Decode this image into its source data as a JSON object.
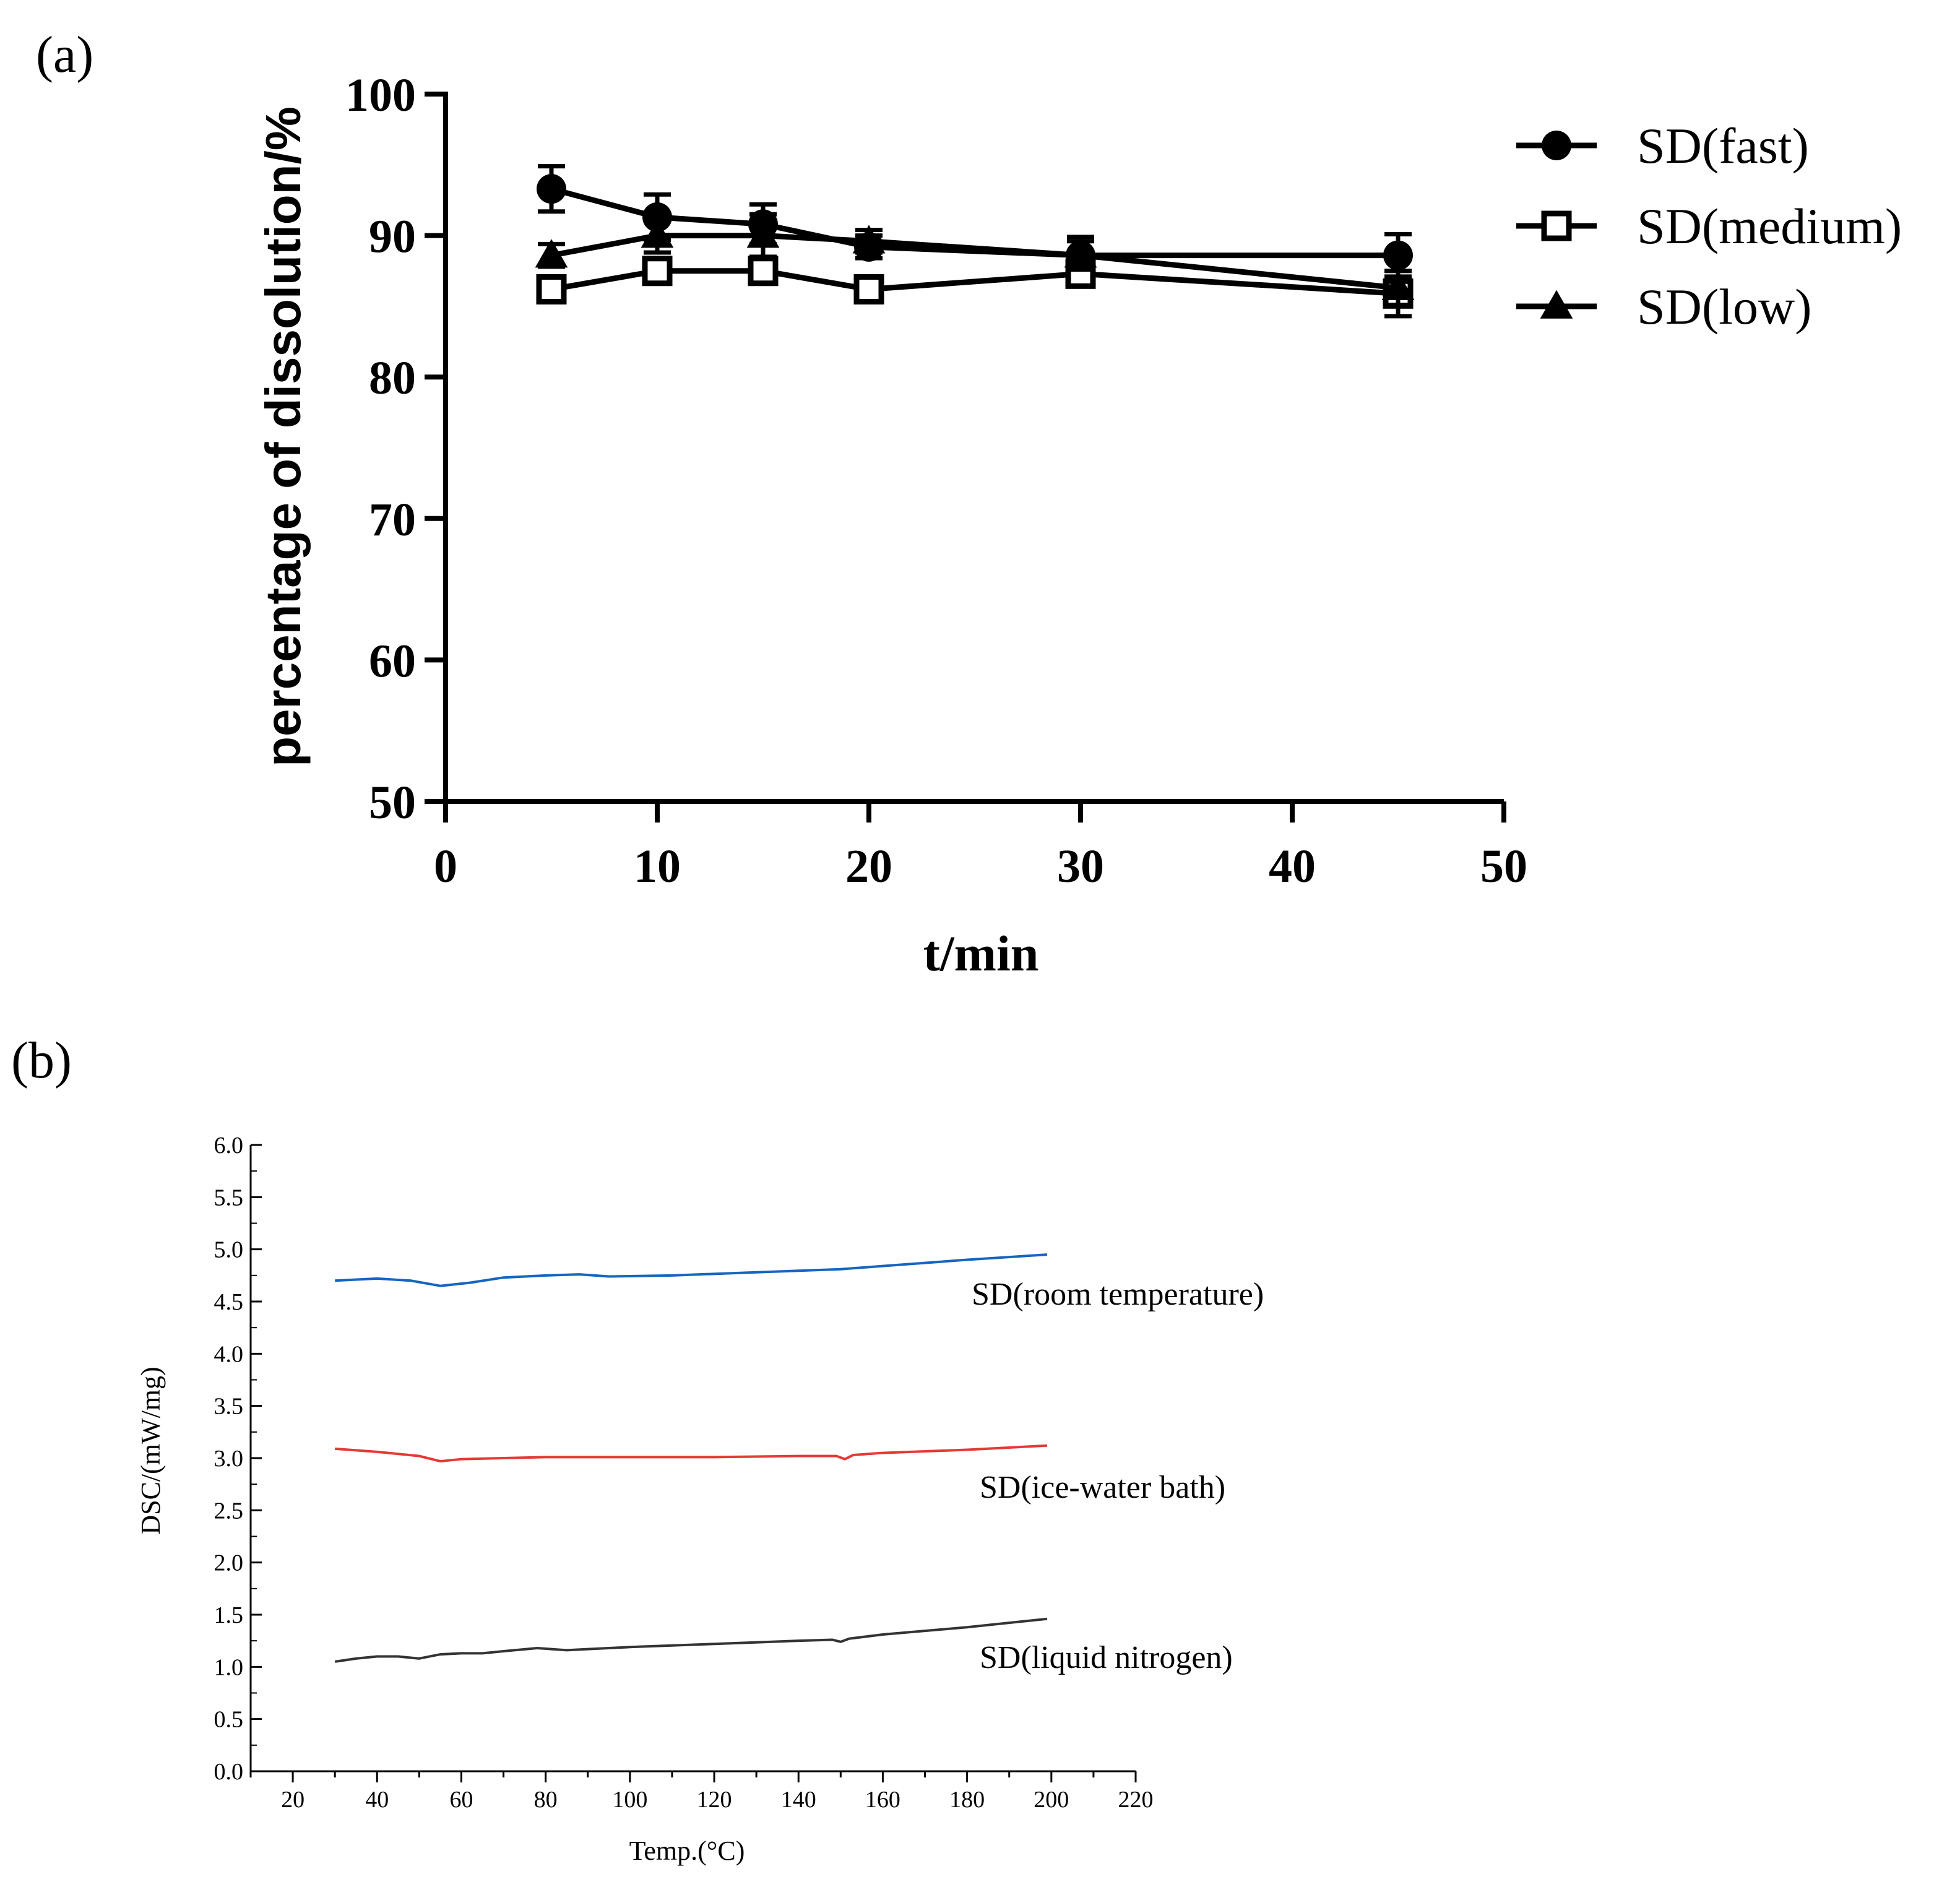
{
  "panels": {
    "a_label": "(a)",
    "b_label": "(b)"
  },
  "chart_data": [
    {
      "type": "line",
      "panel": "(a)",
      "title": "",
      "xlabel": "t/min",
      "ylabel": "percentage of dissolution/%",
      "xlim": [
        0,
        50
      ],
      "ylim": [
        50,
        100
      ],
      "xticks": [
        0,
        10,
        20,
        30,
        40,
        50
      ],
      "yticks": [
        50,
        60,
        70,
        80,
        90,
        100
      ],
      "legend_position": "top-right",
      "x": [
        5,
        10,
        15,
        20,
        30,
        45
      ],
      "series": [
        {
          "name": "SD(fast)",
          "marker": "circle",
          "values": [
            93.3,
            91.3,
            90.8,
            89.2,
            88.6,
            88.6
          ],
          "errors": [
            1.6,
            1.6,
            1.4,
            0.8,
            1.3,
            1.5
          ]
        },
        {
          "name": "SD(medium)",
          "marker": "square",
          "values": [
            86.2,
            87.5,
            87.5,
            86.2,
            87.3,
            85.9
          ],
          "errors": [
            0.9,
            0.8,
            0.7,
            0.8,
            0.7,
            1.6
          ]
        },
        {
          "name": "SD(low)",
          "marker": "triangle",
          "values": [
            88.6,
            90.0,
            90.0,
            89.6,
            88.6,
            86.3
          ],
          "errors": [
            0.8,
            1.2,
            1.5,
            0.8,
            1.0,
            1.2
          ]
        }
      ]
    },
    {
      "type": "line",
      "panel": "(b)",
      "title": "",
      "xlabel": "Temp.(°C)",
      "ylabel": "DSC/(mW/mg)",
      "xlim": [
        10,
        220
      ],
      "ylim": [
        0,
        6
      ],
      "xticks": [
        20,
        40,
        60,
        80,
        100,
        120,
        140,
        160,
        180,
        200,
        220
      ],
      "yticks": [
        "0.0",
        "0.5",
        "1.0",
        "1.5",
        "2.0",
        "2.5",
        "3.0",
        "3.5",
        "4.0",
        "4.5",
        "5.0",
        "5.5",
        "6.0"
      ],
      "series": [
        {
          "name": "SD(room temperature)",
          "color": "#1565c0",
          "x": [
            30,
            40,
            48,
            55,
            62,
            70,
            80,
            88,
            95,
            110,
            130,
            150,
            160,
            180,
            199
          ],
          "values": [
            4.7,
            4.72,
            4.7,
            4.65,
            4.68,
            4.73,
            4.75,
            4.76,
            4.74,
            4.75,
            4.78,
            4.81,
            4.84,
            4.9,
            4.95
          ]
        },
        {
          "name": "SD(ice-water bath)",
          "color": "#e53935",
          "x": [
            30,
            40,
            50,
            55,
            60,
            70,
            80,
            100,
            120,
            140,
            149,
            151,
            153,
            160,
            180,
            199
          ],
          "values": [
            3.09,
            3.06,
            3.02,
            2.97,
            2.99,
            3.0,
            3.01,
            3.01,
            3.01,
            3.02,
            3.02,
            2.99,
            3.03,
            3.05,
            3.08,
            3.12
          ]
        },
        {
          "name": "SD(liquid nitrogen)",
          "color": "#333333",
          "x": [
            30,
            35,
            40,
            45,
            50,
            55,
            60,
            65,
            70,
            78,
            85,
            90,
            100,
            120,
            140,
            148,
            150,
            152,
            160,
            180,
            199
          ],
          "values": [
            1.05,
            1.08,
            1.1,
            1.1,
            1.08,
            1.12,
            1.13,
            1.13,
            1.15,
            1.18,
            1.16,
            1.17,
            1.19,
            1.22,
            1.25,
            1.26,
            1.24,
            1.27,
            1.31,
            1.38,
            1.46
          ]
        }
      ]
    }
  ]
}
